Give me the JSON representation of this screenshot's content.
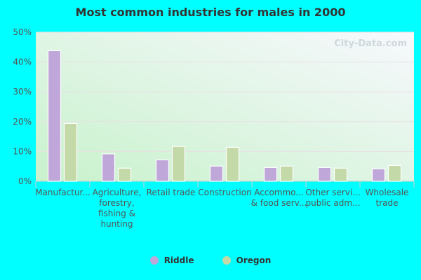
{
  "chart_data": {
    "type": "bar",
    "title": "Most common industries for males in 2000",
    "categories": [
      [
        "Manufactur..."
      ],
      [
        "Agriculture,",
        "forestry,",
        "fishing &",
        "hunting"
      ],
      [
        "Retail trade"
      ],
      [
        "Construction"
      ],
      [
        "Accommo...",
        "& food serv..."
      ],
      [
        "Other servi...",
        "public adm..."
      ],
      [
        "Wholesale",
        "trade"
      ]
    ],
    "series": [
      {
        "name": "Riddle",
        "color": "#bfa8d9",
        "values": [
          43.8,
          9.2,
          7.2,
          5.1,
          4.6,
          4.6,
          4.2
        ]
      },
      {
        "name": "Oregon",
        "color": "#c4d9a8",
        "values": [
          19.4,
          4.4,
          11.7,
          11.4,
          5.1,
          4.4,
          5.3
        ]
      }
    ],
    "ylim": [
      0,
      50
    ],
    "yticks": [
      "0%",
      "10%",
      "20%",
      "30%",
      "40%",
      "50%"
    ],
    "grid": true,
    "legend_position": "bottom",
    "watermark": "City-Data.com"
  }
}
